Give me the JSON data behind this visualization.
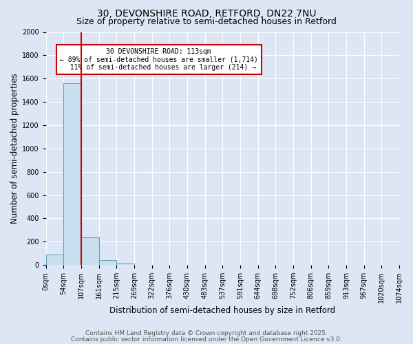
{
  "title1": "30, DEVONSHIRE ROAD, RETFORD, DN22 7NU",
  "title2": "Size of property relative to semi-detached houses in Retford",
  "xlabel": "Distribution of semi-detached houses by size in Retford",
  "ylabel": "Number of semi-detached properties",
  "bin_labels": [
    "0sqm",
    "54sqm",
    "107sqm",
    "161sqm",
    "215sqm",
    "269sqm",
    "322sqm",
    "376sqm",
    "430sqm",
    "483sqm",
    "537sqm",
    "591sqm",
    "644sqm",
    "698sqm",
    "752sqm",
    "806sqm",
    "859sqm",
    "913sqm",
    "967sqm",
    "1020sqm",
    "1074sqm"
  ],
  "bar_values": [
    90,
    1560,
    240,
    40,
    15,
    2,
    0,
    0,
    0,
    0,
    0,
    0,
    0,
    0,
    0,
    0,
    0,
    0,
    0,
    0
  ],
  "bar_color": "#c8dff0",
  "bar_edge_color": "#6699bb",
  "vline_x": 2,
  "vline_color": "#cc0000",
  "ylim": [
    0,
    2000
  ],
  "yticks": [
    0,
    200,
    400,
    600,
    800,
    1000,
    1200,
    1400,
    1600,
    1800,
    2000
  ],
  "annot_text": "30 DEVONSHIRE ROAD: 113sqm\n← 89% of semi-detached houses are smaller (1,714)\n  11% of semi-detached houses are larger (214) →",
  "annot_box_color": "#ffffff",
  "annot_border_color": "#cc0000",
  "footer1": "Contains HM Land Registry data © Crown copyright and database right 2025.",
  "footer2": "Contains public sector information licensed under the Open Government Licence v3.0.",
  "bg_color": "#dce6f5",
  "plot_bg_color": "#dce6f5",
  "grid_color": "#ffffff",
  "title_fontsize": 10,
  "subtitle_fontsize": 9,
  "tick_fontsize": 7,
  "label_fontsize": 8.5,
  "footer_fontsize": 6.5
}
